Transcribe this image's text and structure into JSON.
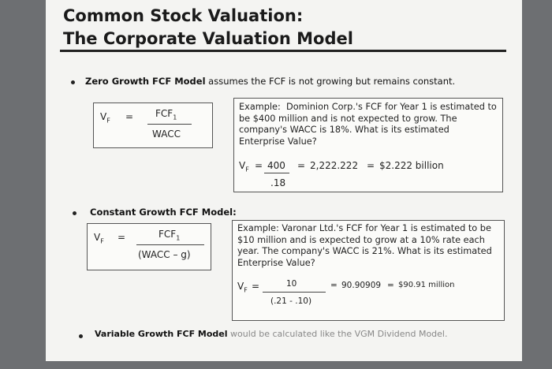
{
  "header": {
    "title_lines": [
      "Common Stock Valuation:",
      "The Corporate Valuation Model"
    ]
  },
  "sections": [
    {
      "bullet_bold": "Zero Growth FCF Model",
      "bullet_rest": " assumes the FCF is not growing but remains constant.",
      "formula": {
        "lhs": "V",
        "lhs_sub": "F",
        "eq": "=",
        "num": "FCF",
        "num_sub": "1",
        "den": "WACC"
      },
      "example": {
        "lead": "Example:",
        "text": "Dominion Corp.'s FCF for Year 1 is estimated to be $400 million and is not expected to grow. The company's WACC is 18%. What is its estimated Enterprise Value?",
        "calc": {
          "lhs": "V",
          "lhs_sub": "F",
          "eq": "=",
          "num": "400",
          "den": ".18",
          "eq2": "=",
          "result": "2,222.222",
          "eq3": "=",
          "final": "$2.222 billion"
        }
      }
    },
    {
      "bullet_bold": "Constant Growth FCF Model:",
      "bullet_rest": "",
      "formula": {
        "lhs": "V",
        "lhs_sub": "F",
        "eq": "=",
        "num": "FCF",
        "num_sub": "1",
        "den": "(WACC – g)"
      },
      "example": {
        "lead": "Example:",
        "text": "Varonar Ltd.'s FCF for Year 1 is estimated to be $10 million and is expected to grow at a 10% rate each year. The company's WACC is 21%. What is its estimated Enterprise Value?",
        "calc": {
          "lhs": "V",
          "lhs_sub": "F",
          "eq": "=",
          "num": "10",
          "den": "(.21 - .10)",
          "eq2": "=",
          "result": "90.90909",
          "eq3": "=",
          "final": "$90.91 million"
        }
      }
    },
    {
      "bullet_bold": "Variable Growth FCF Model",
      "bullet_rest": " would be calculated like the VGM Dividend Model."
    }
  ]
}
